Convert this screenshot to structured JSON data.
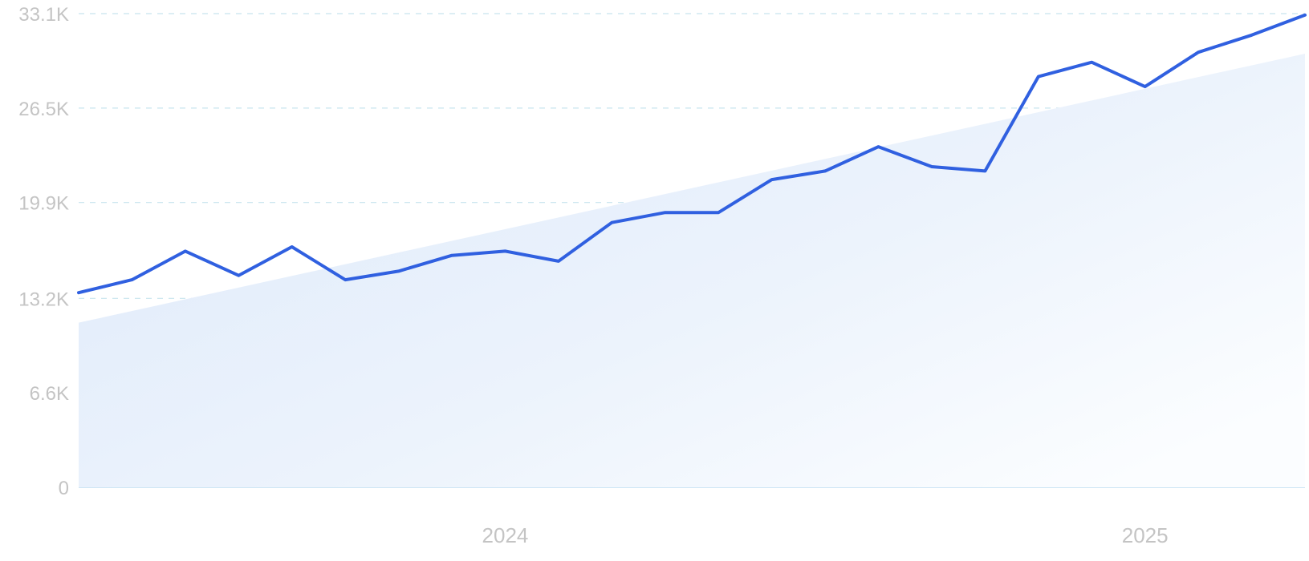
{
  "chart_data": {
    "type": "line",
    "y_ticks": [
      "0",
      "6.6K",
      "13.2K",
      "19.9K",
      "26.5K",
      "33.1K"
    ],
    "y_tick_values": [
      0,
      6600,
      13200,
      19900,
      26500,
      33100
    ],
    "ylim": [
      0,
      33100
    ],
    "x_labels": [
      {
        "label": "2024",
        "index": 8
      },
      {
        "label": "2025",
        "index": 20
      }
    ],
    "grid": true,
    "series": [
      {
        "values": [
          13600,
          14500,
          16500,
          14800,
          16800,
          14500,
          15100,
          16200,
          16500,
          15800,
          18500,
          19200,
          19200,
          21500,
          22100,
          23800,
          22400,
          22100,
          28700,
          29700,
          28000,
          30400,
          31600,
          33000
        ],
        "color": "#3060e0"
      }
    ],
    "trend": {
      "start": 11500,
      "end": 30300,
      "color": "#dbe8fa"
    }
  }
}
